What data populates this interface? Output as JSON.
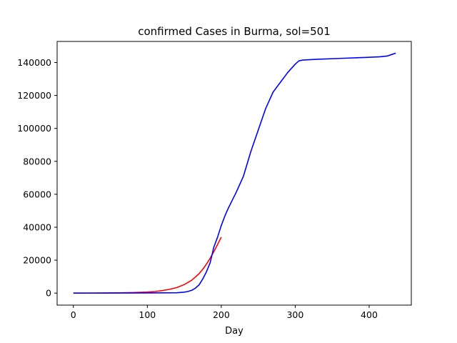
{
  "chart_data": {
    "type": "line",
    "title": "confirmed Cases in Burma, sol=501",
    "xlabel": "Day",
    "ylabel": "",
    "xlim": [
      -22,
      457
    ],
    "ylim": [
      -7300,
      152800
    ],
    "xticks": [
      0,
      100,
      200,
      300,
      400
    ],
    "yticks": [
      0,
      20000,
      40000,
      60000,
      80000,
      100000,
      120000,
      140000
    ],
    "grid": false,
    "series": [
      {
        "color": "#ff0000",
        "x": [
          0,
          20,
          40,
          60,
          80,
          100,
          110,
          120,
          130,
          140,
          150,
          160,
          170,
          175,
          180,
          185,
          190,
          195,
          200
        ],
        "y": [
          0,
          20,
          60,
          150,
          320,
          650,
          950,
          1500,
          2300,
          3400,
          5200,
          7800,
          11800,
          14500,
          17600,
          21200,
          25200,
          29500,
          34000
        ]
      },
      {
        "color": "#0000ff",
        "x": [
          0,
          50,
          100,
          140,
          150,
          155,
          160,
          165,
          170,
          175,
          180,
          185,
          190,
          195,
          200,
          205,
          210,
          220,
          230,
          240,
          250,
          260,
          270,
          280,
          290,
          300,
          305,
          310,
          330,
          360,
          390,
          415,
          425,
          430,
          436
        ],
        "y": [
          0,
          50,
          100,
          200,
          600,
          1000,
          1700,
          3000,
          5000,
          8600,
          13000,
          18500,
          28000,
          34000,
          41000,
          47000,
          52000,
          61000,
          71000,
          86000,
          99000,
          112000,
          122000,
          128000,
          134000,
          139000,
          141000,
          141500,
          142000,
          142500,
          143000,
          143500,
          144000,
          144800,
          145700
        ]
      }
    ]
  }
}
